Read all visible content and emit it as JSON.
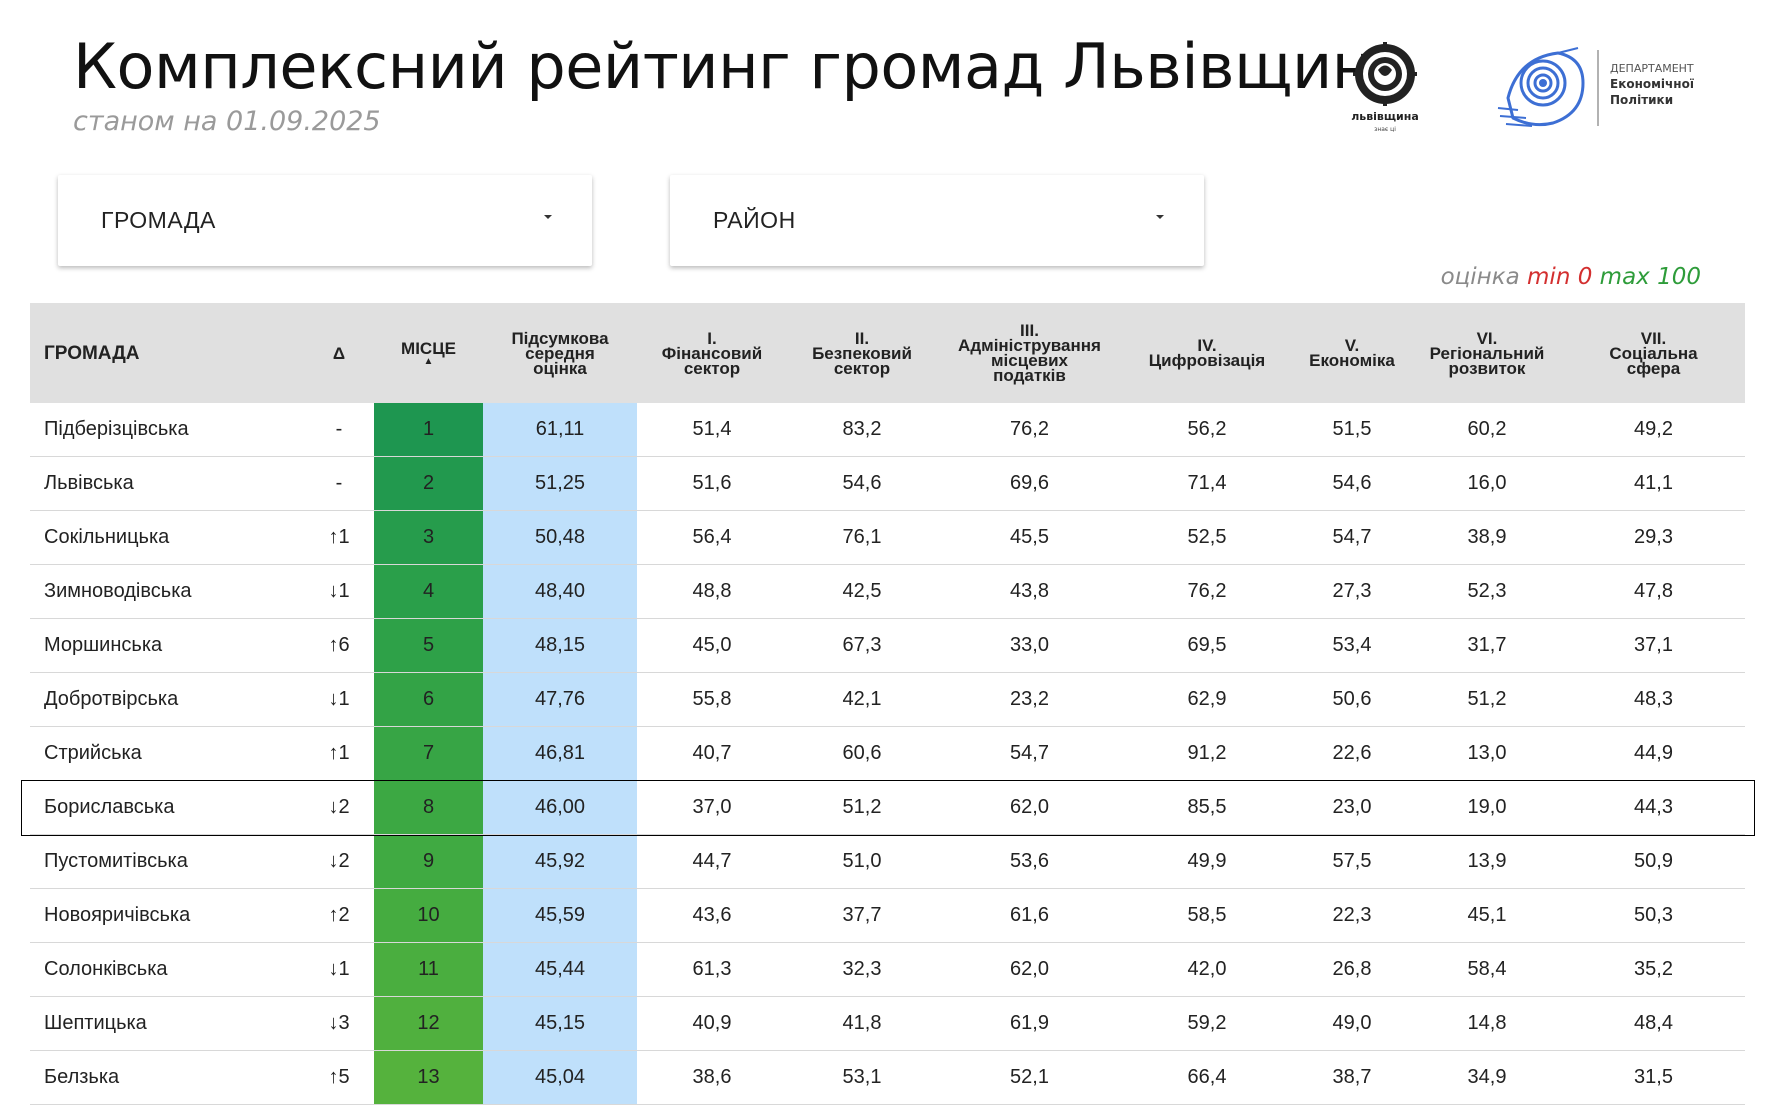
{
  "header": {
    "title": "Комплексний рейтинг громад Львівщини",
    "subtitle": "станом на 01.09.2025"
  },
  "logos": {
    "lvivshchyna": "львівщина",
    "lvivshchyna_tagline": "знає ці",
    "department_line1": "ДЕПАРТАМЕНТ",
    "department_line2": "Економічної",
    "department_line3": "Політики"
  },
  "filters": {
    "hromada_label": "ГРОМАДА",
    "raion_label": "РАЙОН"
  },
  "legend": {
    "prefix": "оцінка",
    "min_text": "min 0",
    "max_text": "max 100",
    "min_color": "#d32f2f",
    "max_color": "#2e9c3a"
  },
  "table": {
    "headers": {
      "hromada": "ГРОМАДА",
      "delta": "Δ",
      "place": "МІСЦЕ",
      "score": [
        "Підсумкова",
        "середня",
        "оцінка"
      ],
      "c1": [
        "I.",
        "Фінансовий",
        "сектор"
      ],
      "c2": [
        "II.",
        "Безпековий",
        "сектор"
      ],
      "c3": [
        "III.",
        "Адміністрування",
        "місцевих",
        "податків"
      ],
      "c4": [
        "IV.",
        "Цифровізація"
      ],
      "c5": [
        "V.",
        "Економіка"
      ],
      "c6": [
        "VI.",
        "Регіональний",
        "розвиток"
      ],
      "c7": [
        "VII.",
        "Соціальна",
        "сфера"
      ]
    },
    "rows": [
      {
        "name": "Підберізцівська",
        "delta": "-",
        "dir": "same",
        "place": "1",
        "place_color": "#1e9650",
        "score": "61,11",
        "c1": "51,4",
        "c2": "83,2",
        "c3": "76,2",
        "c4": "56,2",
        "c5": "51,5",
        "c6": "60,2",
        "c7": "49,2"
      },
      {
        "name": "Львівська",
        "delta": "-",
        "dir": "same",
        "place": "2",
        "place_color": "#22994e",
        "score": "51,25",
        "c1": "51,6",
        "c2": "54,6",
        "c3": "69,6",
        "c4": "71,4",
        "c5": "54,6",
        "c6": "16,0",
        "c7": "41,1"
      },
      {
        "name": "Сокільницька",
        "delta": "↑1",
        "dir": "up",
        "place": "3",
        "place_color": "#269c4c",
        "score": "50,48",
        "c1": "56,4",
        "c2": "76,1",
        "c3": "45,5",
        "c4": "52,5",
        "c5": "54,7",
        "c6": "38,9",
        "c7": "29,3"
      },
      {
        "name": "Зимноводівська",
        "delta": "↓1",
        "dir": "down",
        "place": "4",
        "place_color": "#2a9f4a",
        "score": "48,40",
        "c1": "48,8",
        "c2": "42,5",
        "c3": "43,8",
        "c4": "76,2",
        "c5": "27,3",
        "c6": "52,3",
        "c7": "47,8"
      },
      {
        "name": "Моршинська",
        "delta": "↑6",
        "dir": "up",
        "place": "5",
        "place_color": "#2ea148",
        "score": "48,15",
        "c1": "45,0",
        "c2": "67,3",
        "c3": "33,0",
        "c4": "69,5",
        "c5": "53,4",
        "c6": "31,7",
        "c7": "37,1"
      },
      {
        "name": "Добротвірська",
        "delta": "↓1",
        "dir": "down",
        "place": "6",
        "place_color": "#33a346",
        "score": "47,76",
        "c1": "55,8",
        "c2": "42,1",
        "c3": "23,2",
        "c4": "62,9",
        "c5": "50,6",
        "c6": "51,2",
        "c7": "48,3"
      },
      {
        "name": "Стрийська",
        "delta": "↑1",
        "dir": "up",
        "place": "7",
        "place_color": "#37a545",
        "score": "46,81",
        "c1": "40,7",
        "c2": "60,6",
        "c3": "54,7",
        "c4": "91,2",
        "c5": "22,6",
        "c6": "13,0",
        "c7": "44,9"
      },
      {
        "name": "Бориславська",
        "delta": "↓2",
        "dir": "down",
        "place": "8",
        "place_color": "#3ca843",
        "score": "46,00",
        "c1": "37,0",
        "c2": "51,2",
        "c3": "62,0",
        "c4": "85,5",
        "c5": "23,0",
        "c6": "19,0",
        "c7": "44,3"
      },
      {
        "name": "Пустомитівська",
        "delta": "↓2",
        "dir": "down",
        "place": "9",
        "place_color": "#40aa42",
        "score": "45,92",
        "c1": "44,7",
        "c2": "51,0",
        "c3": "53,6",
        "c4": "49,9",
        "c5": "57,5",
        "c6": "13,9",
        "c7": "50,9"
      },
      {
        "name": "Новояричівська",
        "delta": "↑2",
        "dir": "up",
        "place": "10",
        "place_color": "#45ac40",
        "score": "45,59",
        "c1": "43,6",
        "c2": "37,7",
        "c3": "61,6",
        "c4": "58,5",
        "c5": "22,3",
        "c6": "45,1",
        "c7": "50,3"
      },
      {
        "name": "Солонківська",
        "delta": "↓1",
        "dir": "down",
        "place": "11",
        "place_color": "#4aae3f",
        "score": "45,44",
        "c1": "61,3",
        "c2": "32,3",
        "c3": "62,0",
        "c4": "42,0",
        "c5": "26,8",
        "c6": "58,4",
        "c7": "35,2"
      },
      {
        "name": "Шептицька",
        "delta": "↓3",
        "dir": "down",
        "place": "12",
        "place_color": "#50b03e",
        "score": "45,15",
        "c1": "40,9",
        "c2": "41,8",
        "c3": "61,9",
        "c4": "59,2",
        "c5": "49,0",
        "c6": "14,8",
        "c7": "48,4"
      },
      {
        "name": "Белзька",
        "delta": "↑5",
        "dir": "up",
        "place": "13",
        "place_color": "#55b23d",
        "score": "45,04",
        "c1": "38,6",
        "c2": "53,1",
        "c3": "52,1",
        "c4": "66,4",
        "c5": "38,7",
        "c6": "34,9",
        "c7": "31,5"
      }
    ],
    "selected_row": "Бориславська"
  }
}
